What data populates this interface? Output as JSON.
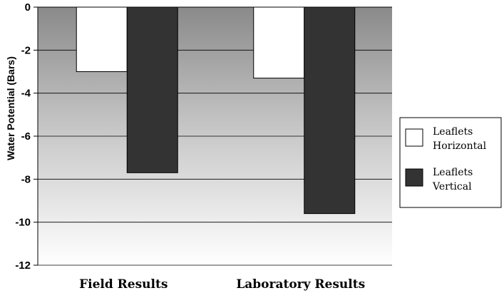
{
  "chart_data": {
    "type": "bar",
    "title": "",
    "xlabel": "",
    "ylabel": "Water Potential (Bars)",
    "categories": [
      "Field Results",
      "Laboratory Results"
    ],
    "series": [
      {
        "name": "Leaflets Horizontal",
        "values": [
          -3.0,
          -3.3
        ],
        "color": "#ffffff"
      },
      {
        "name": "Leaflets Vertical",
        "values": [
          -7.7,
          -9.6
        ],
        "color": "#333333"
      }
    ],
    "ylim": [
      -12,
      0
    ],
    "yticks": [
      0,
      -2,
      -4,
      -6,
      -8,
      -10,
      -12
    ],
    "ytick_labels": [
      "0",
      "-2",
      "-4",
      "-6",
      "-8",
      "-10",
      "-12"
    ],
    "grid": true,
    "legend_position": "right",
    "background": "gradient gray to white"
  }
}
